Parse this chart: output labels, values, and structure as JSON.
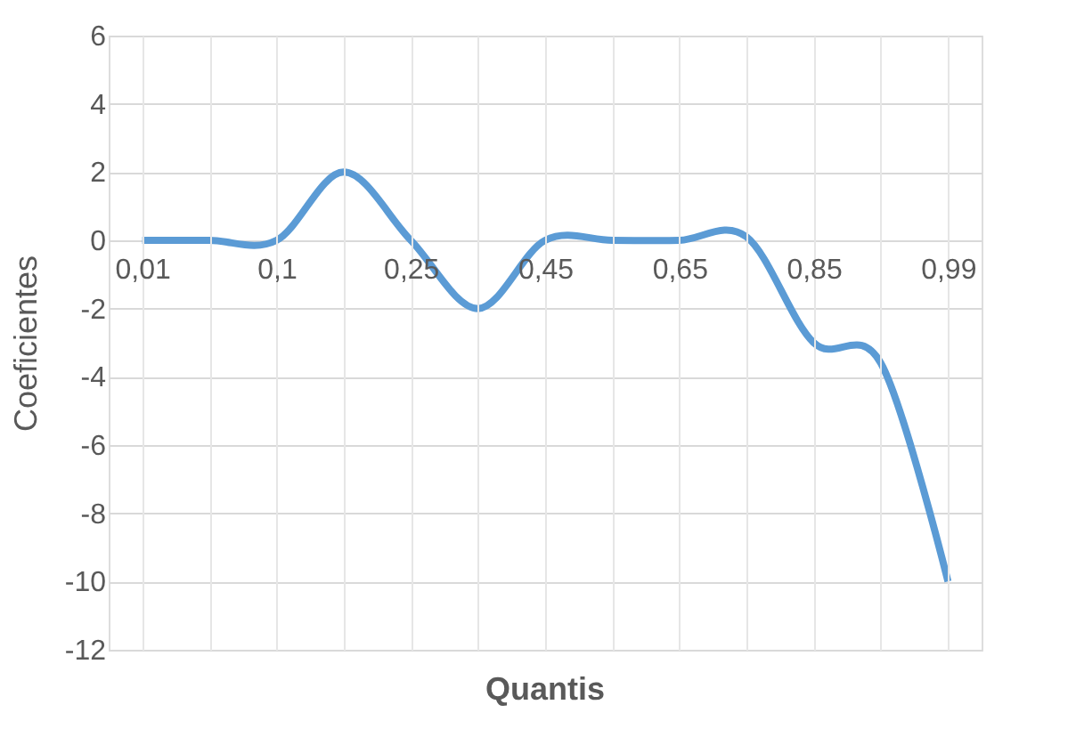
{
  "chart_data": {
    "type": "line",
    "xlabel": "Quantis",
    "ylabel": "Coeficientes",
    "categories": [
      "0,01",
      null,
      "0,1",
      null,
      "0,25",
      null,
      "0,45",
      null,
      "0,65",
      null,
      "0,85",
      null,
      "0,99"
    ],
    "series": [
      {
        "color": "#5b9bd5",
        "values": [
          0,
          0,
          0,
          2,
          0,
          -2,
          0,
          0,
          0,
          0.1,
          -3,
          -3.6,
          -10
        ]
      }
    ],
    "ylim": [
      -12,
      6
    ],
    "yticks": [
      -12,
      -10,
      -8,
      -6,
      -4,
      -2,
      0,
      2,
      4,
      6
    ],
    "grid": true,
    "marker": "none",
    "line_style": "solid"
  }
}
